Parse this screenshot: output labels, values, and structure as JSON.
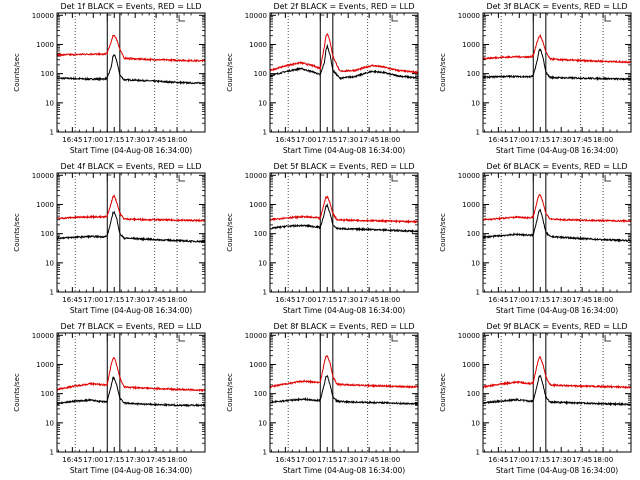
{
  "page": {
    "x_axis_label": "Start Time (04-Aug-08 16:34:00)",
    "y_axis_label": "Counts/sec",
    "line_colors": {
      "events": "#000000",
      "lld": "#e00000"
    }
  },
  "chart_data": [
    {
      "type": "line",
      "title": "Det 1f BLACK = Events, RED = LLD",
      "xlabel": "Start Time (04-Aug-08 16:34:00)",
      "ylabel": "Counts/sec",
      "x_ticks": [
        "16:45",
        "17:00",
        "17:15",
        "17:30",
        "17:45",
        "18:00"
      ],
      "y_ticks": [
        "1",
        "10",
        "100",
        "1000",
        "10000"
      ],
      "yscale": "log",
      "ylim": [
        1,
        12000
      ],
      "xlim": [
        "16:34",
        "18:20"
      ],
      "dotted_time_markers": [
        "16:47",
        "17:44",
        "18:00"
      ],
      "solid_time_markers": [
        "17:10",
        "17:19"
      ],
      "series": [
        {
          "color": "black",
          "x": [
            "16:34",
            "16:46",
            "16:58",
            "17:08",
            "17:10",
            "17:13",
            "17:14",
            "17:15",
            "17:17",
            "17:19",
            "17:22",
            "17:30",
            "17:45",
            "18:00",
            "18:10",
            "18:20"
          ],
          "values": [
            70,
            68,
            65,
            66,
            70,
            180,
            380,
            460,
            250,
            90,
            62,
            60,
            55,
            50,
            48,
            47
          ]
        },
        {
          "color": "red",
          "x": [
            "16:34",
            "16:46",
            "16:58",
            "17:08",
            "17:10",
            "17:13",
            "17:14",
            "17:15",
            "17:17",
            "17:19",
            "17:22",
            "17:30",
            "17:45",
            "18:00",
            "18:10",
            "18:20"
          ],
          "values": [
            440,
            450,
            470,
            460,
            520,
            1300,
            1900,
            2100,
            1400,
            700,
            340,
            320,
            300,
            290,
            280,
            275
          ]
        }
      ]
    },
    {
      "type": "line",
      "title": "Det 2f BLACK = Events, RED = LLD",
      "xlabel": "Start Time (04-Aug-08 16:34:00)",
      "ylabel": "Counts/sec",
      "x_ticks": [
        "16:45",
        "17:00",
        "17:15",
        "17:30",
        "17:45",
        "18:00"
      ],
      "y_ticks": [
        "1",
        "10",
        "100",
        "1000",
        "10000"
      ],
      "yscale": "log",
      "ylim": [
        1,
        12000
      ],
      "xlim": [
        "16:34",
        "18:20"
      ],
      "dotted_time_markers": [
        "16:47",
        "17:44",
        "18:00"
      ],
      "solid_time_markers": [
        "17:10",
        "17:19"
      ],
      "series": [
        {
          "color": "black",
          "x": [
            "16:34",
            "16:46",
            "16:56",
            "17:06",
            "17:10",
            "17:13",
            "17:14",
            "17:15",
            "17:17",
            "17:19",
            "17:24",
            "17:35",
            "17:47",
            "17:55",
            "18:05",
            "18:20"
          ],
          "values": [
            85,
            120,
            150,
            110,
            90,
            250,
            600,
            900,
            450,
            130,
            70,
            80,
            120,
            110,
            85,
            70
          ]
        },
        {
          "color": "red",
          "x": [
            "16:34",
            "16:46",
            "16:56",
            "17:06",
            "17:10",
            "17:13",
            "17:14",
            "17:15",
            "17:17",
            "17:19",
            "17:24",
            "17:35",
            "17:47",
            "17:55",
            "18:05",
            "18:20"
          ],
          "values": [
            130,
            190,
            240,
            180,
            150,
            900,
            1900,
            2400,
            1300,
            400,
            120,
            130,
            190,
            170,
            130,
            110
          ]
        }
      ]
    },
    {
      "type": "line",
      "title": "Det 3f BLACK = Events, RED = LLD",
      "xlabel": "Start Time (04-Aug-08 16:34:00)",
      "ylabel": "Counts/sec",
      "x_ticks": [
        "16:45",
        "17:00",
        "17:15",
        "17:30",
        "17:45",
        "18:00"
      ],
      "y_ticks": [
        "1",
        "10",
        "100",
        "1000",
        "10000"
      ],
      "yscale": "log",
      "ylim": [
        1,
        12000
      ],
      "xlim": [
        "16:34",
        "18:20"
      ],
      "dotted_time_markers": [
        "16:47",
        "17:44",
        "18:00"
      ],
      "solid_time_markers": [
        "17:10",
        "17:19"
      ],
      "series": [
        {
          "color": "black",
          "x": [
            "16:34",
            "16:46",
            "16:58",
            "17:08",
            "17:10",
            "17:13",
            "17:14",
            "17:15",
            "17:17",
            "17:19",
            "17:22",
            "17:30",
            "17:45",
            "18:00",
            "18:10",
            "18:20"
          ],
          "values": [
            75,
            80,
            80,
            78,
            85,
            300,
            600,
            700,
            350,
            110,
            75,
            72,
            70,
            68,
            66,
            65
          ]
        },
        {
          "color": "red",
          "x": [
            "16:34",
            "16:46",
            "16:58",
            "17:08",
            "17:10",
            "17:13",
            "17:14",
            "17:15",
            "17:17",
            "17:19",
            "17:22",
            "17:30",
            "17:45",
            "18:00",
            "18:10",
            "18:20"
          ],
          "values": [
            330,
            360,
            380,
            370,
            420,
            1300,
            1800,
            2000,
            1200,
            550,
            320,
            300,
            280,
            265,
            255,
            250
          ]
        }
      ]
    },
    {
      "type": "line",
      "title": "Det 4f BLACK = Events, RED = LLD",
      "xlabel": "Start Time (04-Aug-08 16:34:00)",
      "ylabel": "Counts/sec",
      "x_ticks": [
        "16:45",
        "17:00",
        "17:15",
        "17:30",
        "17:45",
        "18:00"
      ],
      "y_ticks": [
        "1",
        "10",
        "100",
        "1000",
        "10000"
      ],
      "yscale": "log",
      "ylim": [
        1,
        12000
      ],
      "xlim": [
        "16:34",
        "18:20"
      ],
      "dotted_time_markers": [
        "16:47",
        "17:44",
        "18:00"
      ],
      "solid_time_markers": [
        "17:10",
        "17:19"
      ],
      "series": [
        {
          "color": "black",
          "x": [
            "16:34",
            "16:46",
            "16:58",
            "17:08",
            "17:10",
            "17:13",
            "17:14",
            "17:15",
            "17:17",
            "17:19",
            "17:22",
            "17:30",
            "17:45",
            "18:00",
            "18:10",
            "18:20"
          ],
          "values": [
            70,
            75,
            80,
            78,
            85,
            300,
            500,
            560,
            300,
            100,
            70,
            68,
            62,
            58,
            55,
            54
          ]
        },
        {
          "color": "red",
          "x": [
            "16:34",
            "16:46",
            "16:58",
            "17:08",
            "17:10",
            "17:13",
            "17:14",
            "17:15",
            "17:17",
            "17:19",
            "17:22",
            "17:30",
            "17:45",
            "18:00",
            "18:10",
            "18:20"
          ],
          "values": [
            330,
            360,
            380,
            370,
            400,
            1200,
            1800,
            2000,
            1100,
            500,
            320,
            310,
            300,
            290,
            285,
            280
          ]
        }
      ]
    },
    {
      "type": "line",
      "title": "Det 5f BLACK = Events, RED = LLD",
      "xlabel": "Start Time (04-Aug-08 16:34:00)",
      "ylabel": "Counts/sec",
      "x_ticks": [
        "16:45",
        "17:00",
        "17:15",
        "17:30",
        "17:45",
        "18:00"
      ],
      "y_ticks": [
        "1",
        "10",
        "100",
        "1000",
        "10000"
      ],
      "yscale": "log",
      "ylim": [
        1,
        12000
      ],
      "xlim": [
        "16:34",
        "18:20"
      ],
      "dotted_time_markers": [
        "16:47",
        "17:44",
        "18:00"
      ],
      "solid_time_markers": [
        "17:10",
        "17:19"
      ],
      "series": [
        {
          "color": "black",
          "x": [
            "16:34",
            "16:46",
            "16:58",
            "17:08",
            "17:10",
            "17:13",
            "17:14",
            "17:15",
            "17:17",
            "17:19",
            "17:22",
            "17:30",
            "17:45",
            "18:00",
            "18:10",
            "18:20"
          ],
          "values": [
            150,
            180,
            190,
            170,
            160,
            500,
            850,
            950,
            500,
            200,
            150,
            145,
            140,
            130,
            125,
            120
          ]
        },
        {
          "color": "red",
          "x": [
            "16:34",
            "16:46",
            "16:58",
            "17:08",
            "17:10",
            "17:13",
            "17:14",
            "17:15",
            "17:17",
            "17:19",
            "17:22",
            "17:30",
            "17:45",
            "18:00",
            "18:10",
            "18:20"
          ],
          "values": [
            300,
            350,
            380,
            350,
            330,
            1200,
            1700,
            1900,
            1100,
            500,
            300,
            290,
            280,
            270,
            260,
            255
          ]
        }
      ]
    },
    {
      "type": "line",
      "title": "Det 6f BLACK = Events, RED = LLD",
      "xlabel": "Start Time (04-Aug-08 16:34:00)",
      "ylabel": "Counts/sec",
      "x_ticks": [
        "16:45",
        "17:00",
        "17:15",
        "17:30",
        "17:45",
        "18:00"
      ],
      "y_ticks": [
        "1",
        "10",
        "100",
        "1000",
        "10000"
      ],
      "yscale": "log",
      "ylim": [
        1,
        12000
      ],
      "xlim": [
        "16:34",
        "18:20"
      ],
      "dotted_time_markers": [
        "16:47",
        "17:44",
        "18:00"
      ],
      "solid_time_markers": [
        "17:10",
        "17:19"
      ],
      "series": [
        {
          "color": "black",
          "x": [
            "16:34",
            "16:46",
            "16:58",
            "17:08",
            "17:10",
            "17:13",
            "17:14",
            "17:15",
            "17:17",
            "17:19",
            "17:22",
            "17:30",
            "17:45",
            "18:00",
            "18:10",
            "18:20"
          ],
          "values": [
            75,
            85,
            95,
            88,
            90,
            350,
            600,
            650,
            300,
            110,
            80,
            75,
            68,
            62,
            60,
            58
          ]
        },
        {
          "color": "red",
          "x": [
            "16:34",
            "16:46",
            "16:58",
            "17:08",
            "17:10",
            "17:13",
            "17:14",
            "17:15",
            "17:17",
            "17:19",
            "17:22",
            "17:30",
            "17:45",
            "18:00",
            "18:10",
            "18:20"
          ],
          "values": [
            300,
            330,
            370,
            350,
            380,
            1400,
            2000,
            2200,
            1200,
            500,
            320,
            300,
            290,
            280,
            275,
            270
          ]
        }
      ]
    },
    {
      "type": "line",
      "title": "Det 7f BLACK = Events, RED = LLD",
      "xlabel": "Start Time (04-Aug-08 16:34:00)",
      "ylabel": "Counts/sec",
      "x_ticks": [
        "16:45",
        "17:00",
        "17:15",
        "17:30",
        "17:45",
        "18:00"
      ],
      "y_ticks": [
        "1",
        "10",
        "100",
        "1000",
        "10000"
      ],
      "yscale": "log",
      "ylim": [
        1,
        12000
      ],
      "xlim": [
        "16:34",
        "18:20"
      ],
      "dotted_time_markers": [
        "16:47",
        "17:44",
        "18:00"
      ],
      "solid_time_markers": [
        "17:10",
        "17:19"
      ],
      "series": [
        {
          "color": "black",
          "x": [
            "16:34",
            "16:46",
            "16:58",
            "17:08",
            "17:10",
            "17:13",
            "17:14",
            "17:15",
            "17:17",
            "17:19",
            "17:22",
            "17:30",
            "17:45",
            "18:00",
            "18:10",
            "18:20"
          ],
          "values": [
            45,
            55,
            60,
            52,
            55,
            200,
            330,
            350,
            180,
            70,
            48,
            45,
            42,
            40,
            40,
            40
          ]
        },
        {
          "color": "red",
          "x": [
            "16:34",
            "16:46",
            "16:58",
            "17:08",
            "17:10",
            "17:13",
            "17:14",
            "17:15",
            "17:17",
            "17:19",
            "17:22",
            "17:30",
            "17:45",
            "18:00",
            "18:10",
            "18:20"
          ],
          "values": [
            140,
            180,
            220,
            200,
            210,
            1100,
            1600,
            1700,
            900,
            350,
            170,
            160,
            150,
            140,
            135,
            130
          ]
        }
      ]
    },
    {
      "type": "line",
      "title": "Det 8f BLACK = Events, RED = LLD",
      "xlabel": "Start Time (04-Aug-08 16:34:00)",
      "ylabel": "Counts/sec",
      "x_ticks": [
        "16:45",
        "17:00",
        "17:15",
        "17:30",
        "17:45",
        "18:00"
      ],
      "y_ticks": [
        "1",
        "10",
        "100",
        "1000",
        "10000"
      ],
      "yscale": "log",
      "ylim": [
        1,
        12000
      ],
      "xlim": [
        "16:34",
        "18:20"
      ],
      "dotted_time_markers": [
        "16:47",
        "17:44",
        "18:00"
      ],
      "solid_time_markers": [
        "17:10",
        "17:19"
      ],
      "series": [
        {
          "color": "black",
          "x": [
            "16:34",
            "16:46",
            "16:58",
            "17:08",
            "17:10",
            "17:13",
            "17:14",
            "17:15",
            "17:17",
            "17:19",
            "17:22",
            "17:30",
            "17:45",
            "18:00",
            "18:10",
            "18:20"
          ],
          "values": [
            50,
            58,
            65,
            58,
            60,
            220,
            380,
            420,
            200,
            80,
            55,
            52,
            50,
            48,
            46,
            45
          ]
        },
        {
          "color": "red",
          "x": [
            "16:34",
            "16:46",
            "16:58",
            "17:08",
            "17:10",
            "17:13",
            "17:14",
            "17:15",
            "17:17",
            "17:19",
            "17:22",
            "17:30",
            "17:45",
            "18:00",
            "18:10",
            "18:20"
          ],
          "values": [
            170,
            220,
            270,
            240,
            250,
            1200,
            1800,
            2000,
            1100,
            400,
            210,
            200,
            190,
            180,
            175,
            170
          ]
        }
      ]
    },
    {
      "type": "line",
      "title": "Det 9f BLACK = Events, RED = LLD",
      "xlabel": "Start Time (04-Aug-08 16:34:00)",
      "ylabel": "Counts/sec",
      "x_ticks": [
        "16:45",
        "17:00",
        "17:15",
        "17:30",
        "17:45",
        "18:00"
      ],
      "y_ticks": [
        "1",
        "10",
        "100",
        "1000",
        "10000"
      ],
      "yscale": "log",
      "ylim": [
        1,
        12000
      ],
      "xlim": [
        "16:34",
        "18:20"
      ],
      "dotted_time_markers": [
        "16:47",
        "17:44",
        "18:00"
      ],
      "solid_time_markers": [
        "17:10",
        "17:19"
      ],
      "series": [
        {
          "color": "black",
          "x": [
            "16:34",
            "16:46",
            "16:58",
            "17:08",
            "17:10",
            "17:13",
            "17:14",
            "17:15",
            "17:17",
            "17:19",
            "17:22",
            "17:30",
            "17:45",
            "18:00",
            "18:10",
            "18:20"
          ],
          "values": [
            48,
            55,
            62,
            55,
            58,
            210,
            380,
            420,
            200,
            75,
            52,
            50,
            48,
            45,
            44,
            43
          ]
        },
        {
          "color": "red",
          "x": [
            "16:34",
            "16:46",
            "16:58",
            "17:08",
            "17:10",
            "17:13",
            "17:14",
            "17:15",
            "17:17",
            "17:19",
            "17:22",
            "17:30",
            "17:45",
            "18:00",
            "18:10",
            "18:20"
          ],
          "values": [
            170,
            210,
            250,
            220,
            240,
            1100,
            1600,
            1800,
            1000,
            380,
            200,
            190,
            180,
            175,
            170,
            165
          ]
        }
      ]
    }
  ]
}
